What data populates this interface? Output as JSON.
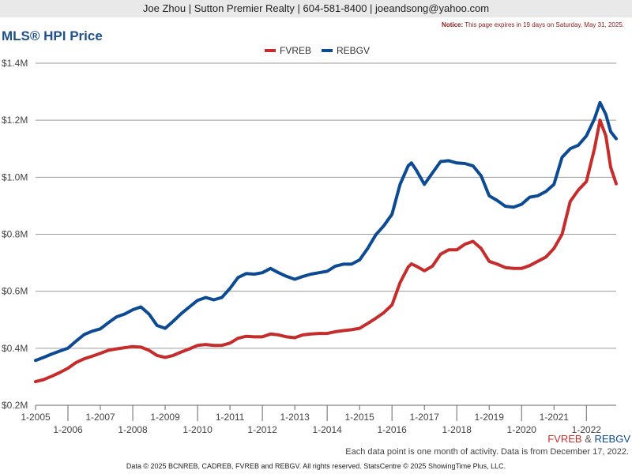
{
  "header": {
    "contact": "Joe Zhou | Sutton Premier Realty | 604-581-8400 | joeandsong@yahoo.com",
    "notice_label": "Notice:",
    "notice_text": "This page expires in 19 days on Saturday, May 31, 2025."
  },
  "footnote": "Each data point is one month of activity. Data is from December 17, 2022.",
  "footer": "Data © 2025 BCNREB, CADREB, FVREB and REBGV. All rights reserved. StatsCentre © 2025 ShowingTime Plus, LLC.",
  "colors": {
    "FVREB": "#c62c2c",
    "REBGV": "#0d4a94",
    "grid": "#9a9a9a"
  },
  "chart_data": {
    "type": "line",
    "title": "MLS® HPI Price",
    "legend_position": "top-center",
    "grid": true,
    "corner_legend": {
      "first": "FVREB",
      "amp": " & ",
      "second": "REBGV"
    },
    "y_ticks": [
      {
        "value": 0.2,
        "label": "$0.2M"
      },
      {
        "value": 0.4,
        "label": "$0.4M"
      },
      {
        "value": 0.6,
        "label": "$0.6M"
      },
      {
        "value": 0.8,
        "label": "$0.8M"
      },
      {
        "value": 1.0,
        "label": "$1.0M"
      },
      {
        "value": 1.2,
        "label": "$1.2M"
      },
      {
        "value": 1.4,
        "label": "$1.4M"
      }
    ],
    "ylim": [
      0.2,
      1.4
    ],
    "xlim": [
      2005.0,
      2022.92
    ],
    "x_ticks": [
      {
        "value": 2005,
        "label": "1-2005"
      },
      {
        "value": 2006,
        "label": "1-2006"
      },
      {
        "value": 2007,
        "label": "1-2007"
      },
      {
        "value": 2008,
        "label": "1-2008"
      },
      {
        "value": 2009,
        "label": "1-2009"
      },
      {
        "value": 2010,
        "label": "1-2010"
      },
      {
        "value": 2011,
        "label": "1-2011"
      },
      {
        "value": 2012,
        "label": "1-2012"
      },
      {
        "value": 2013,
        "label": "1-2013"
      },
      {
        "value": 2014,
        "label": "1-2014"
      },
      {
        "value": 2015,
        "label": "1-2015"
      },
      {
        "value": 2016,
        "label": "1-2016"
      },
      {
        "value": 2017,
        "label": "1-2017"
      },
      {
        "value": 2018,
        "label": "1-2018"
      },
      {
        "value": 2019,
        "label": "1-2019"
      },
      {
        "value": 2020,
        "label": "1-2020"
      },
      {
        "value": 2021,
        "label": "1-2021"
      },
      {
        "value": 2022,
        "label": "1-2022"
      }
    ],
    "series": [
      {
        "name": "FVREB",
        "points": [
          [
            2005.0,
            0.283
          ],
          [
            2005.25,
            0.29
          ],
          [
            2005.5,
            0.302
          ],
          [
            2005.75,
            0.315
          ],
          [
            2006.0,
            0.33
          ],
          [
            2006.25,
            0.35
          ],
          [
            2006.5,
            0.363
          ],
          [
            2006.75,
            0.372
          ],
          [
            2007.0,
            0.382
          ],
          [
            2007.25,
            0.393
          ],
          [
            2007.5,
            0.398
          ],
          [
            2007.75,
            0.402
          ],
          [
            2008.0,
            0.406
          ],
          [
            2008.25,
            0.404
          ],
          [
            2008.5,
            0.393
          ],
          [
            2008.75,
            0.375
          ],
          [
            2009.0,
            0.368
          ],
          [
            2009.25,
            0.375
          ],
          [
            2009.5,
            0.387
          ],
          [
            2009.75,
            0.398
          ],
          [
            2010.0,
            0.41
          ],
          [
            2010.25,
            0.413
          ],
          [
            2010.5,
            0.41
          ],
          [
            2010.75,
            0.41
          ],
          [
            2011.0,
            0.418
          ],
          [
            2011.25,
            0.435
          ],
          [
            2011.5,
            0.442
          ],
          [
            2011.75,
            0.44
          ],
          [
            2012.0,
            0.44
          ],
          [
            2012.25,
            0.45
          ],
          [
            2012.5,
            0.447
          ],
          [
            2012.75,
            0.44
          ],
          [
            2013.0,
            0.437
          ],
          [
            2013.25,
            0.447
          ],
          [
            2013.5,
            0.45
          ],
          [
            2013.75,
            0.452
          ],
          [
            2014.0,
            0.452
          ],
          [
            2014.25,
            0.458
          ],
          [
            2014.5,
            0.462
          ],
          [
            2014.75,
            0.465
          ],
          [
            2015.0,
            0.47
          ],
          [
            2015.25,
            0.487
          ],
          [
            2015.5,
            0.505
          ],
          [
            2015.75,
            0.525
          ],
          [
            2016.0,
            0.552
          ],
          [
            2016.25,
            0.63
          ],
          [
            2016.5,
            0.685
          ],
          [
            2016.6,
            0.696
          ],
          [
            2016.75,
            0.688
          ],
          [
            2017.0,
            0.672
          ],
          [
            2017.25,
            0.688
          ],
          [
            2017.5,
            0.73
          ],
          [
            2017.75,
            0.745
          ],
          [
            2018.0,
            0.745
          ],
          [
            2018.25,
            0.765
          ],
          [
            2018.5,
            0.775
          ],
          [
            2018.75,
            0.75
          ],
          [
            2019.0,
            0.705
          ],
          [
            2019.25,
            0.695
          ],
          [
            2019.5,
            0.683
          ],
          [
            2019.75,
            0.68
          ],
          [
            2020.0,
            0.68
          ],
          [
            2020.25,
            0.69
          ],
          [
            2020.5,
            0.705
          ],
          [
            2020.75,
            0.72
          ],
          [
            2021.0,
            0.75
          ],
          [
            2021.25,
            0.8
          ],
          [
            2021.5,
            0.915
          ],
          [
            2021.75,
            0.955
          ],
          [
            2022.0,
            0.985
          ],
          [
            2022.25,
            1.1
          ],
          [
            2022.42,
            1.2
          ],
          [
            2022.6,
            1.145
          ],
          [
            2022.75,
            1.035
          ],
          [
            2022.92,
            0.977
          ]
        ]
      },
      {
        "name": "REBGV",
        "points": [
          [
            2005.0,
            0.357
          ],
          [
            2005.25,
            0.368
          ],
          [
            2005.5,
            0.38
          ],
          [
            2005.75,
            0.39
          ],
          [
            2006.0,
            0.4
          ],
          [
            2006.25,
            0.425
          ],
          [
            2006.5,
            0.448
          ],
          [
            2006.75,
            0.46
          ],
          [
            2007.0,
            0.468
          ],
          [
            2007.25,
            0.49
          ],
          [
            2007.5,
            0.51
          ],
          [
            2007.75,
            0.52
          ],
          [
            2008.0,
            0.535
          ],
          [
            2008.25,
            0.545
          ],
          [
            2008.5,
            0.52
          ],
          [
            2008.75,
            0.48
          ],
          [
            2009.0,
            0.47
          ],
          [
            2009.25,
            0.495
          ],
          [
            2009.5,
            0.522
          ],
          [
            2009.75,
            0.545
          ],
          [
            2010.0,
            0.568
          ],
          [
            2010.25,
            0.578
          ],
          [
            2010.5,
            0.57
          ],
          [
            2010.75,
            0.578
          ],
          [
            2011.0,
            0.61
          ],
          [
            2011.25,
            0.648
          ],
          [
            2011.5,
            0.662
          ],
          [
            2011.75,
            0.66
          ],
          [
            2012.0,
            0.665
          ],
          [
            2012.25,
            0.68
          ],
          [
            2012.5,
            0.665
          ],
          [
            2012.75,
            0.652
          ],
          [
            2013.0,
            0.642
          ],
          [
            2013.25,
            0.652
          ],
          [
            2013.5,
            0.66
          ],
          [
            2013.75,
            0.665
          ],
          [
            2014.0,
            0.67
          ],
          [
            2014.25,
            0.688
          ],
          [
            2014.5,
            0.695
          ],
          [
            2014.75,
            0.695
          ],
          [
            2015.0,
            0.71
          ],
          [
            2015.25,
            0.75
          ],
          [
            2015.5,
            0.798
          ],
          [
            2015.75,
            0.83
          ],
          [
            2016.0,
            0.87
          ],
          [
            2016.25,
            0.975
          ],
          [
            2016.5,
            1.04
          ],
          [
            2016.6,
            1.05
          ],
          [
            2016.75,
            1.025
          ],
          [
            2017.0,
            0.975
          ],
          [
            2017.25,
            1.015
          ],
          [
            2017.5,
            1.055
          ],
          [
            2017.75,
            1.058
          ],
          [
            2018.0,
            1.05
          ],
          [
            2018.25,
            1.048
          ],
          [
            2018.5,
            1.04
          ],
          [
            2018.75,
            1.005
          ],
          [
            2019.0,
            0.935
          ],
          [
            2019.25,
            0.918
          ],
          [
            2019.5,
            0.898
          ],
          [
            2019.75,
            0.895
          ],
          [
            2020.0,
            0.905
          ],
          [
            2020.25,
            0.93
          ],
          [
            2020.5,
            0.935
          ],
          [
            2020.75,
            0.95
          ],
          [
            2021.0,
            0.975
          ],
          [
            2021.25,
            1.07
          ],
          [
            2021.5,
            1.1
          ],
          [
            2021.75,
            1.112
          ],
          [
            2022.0,
            1.145
          ],
          [
            2022.25,
            1.205
          ],
          [
            2022.42,
            1.262
          ],
          [
            2022.6,
            1.22
          ],
          [
            2022.75,
            1.16
          ],
          [
            2022.92,
            1.135
          ]
        ]
      }
    ]
  }
}
